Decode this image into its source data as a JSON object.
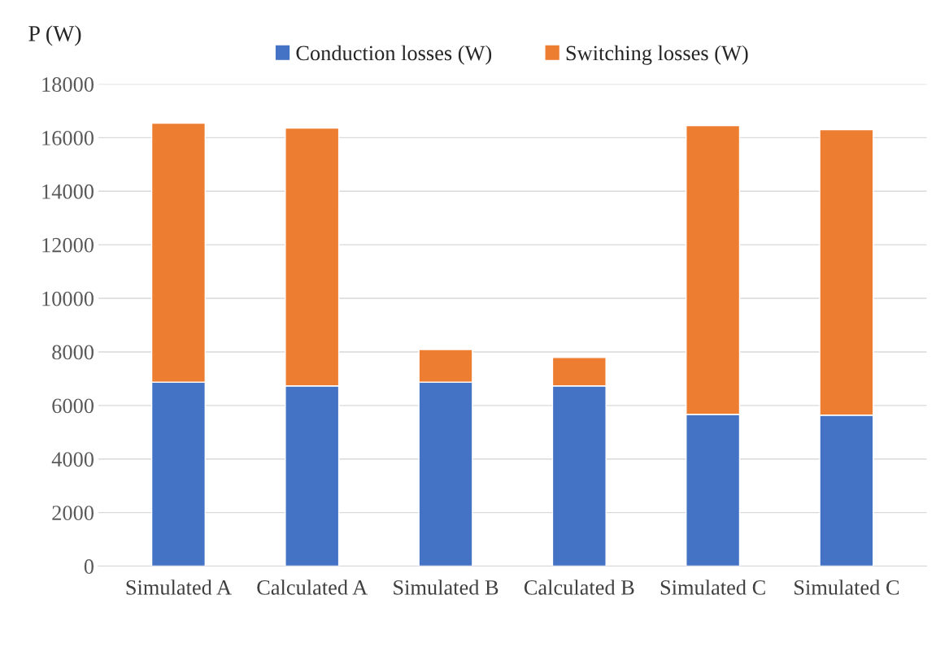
{
  "chart_data": {
    "type": "bar",
    "stacked": true,
    "ylabel": "P (W)",
    "categories": [
      "Simulated A",
      "Calculated A",
      "Simulated B",
      "Calculated B",
      "Simulated C",
      "Simulated C"
    ],
    "series": [
      {
        "name": "Conduction losses (W)",
        "color": "#4472c4",
        "values": [
          6870,
          6730,
          6870,
          6730,
          5670,
          5640
        ]
      },
      {
        "name": "Switching losses (W)",
        "color": "#ed7d31",
        "values": [
          9670,
          9630,
          1220,
          1060,
          10780,
          10660
        ]
      }
    ],
    "ylim": [
      0,
      18000
    ],
    "yticks": [
      0,
      2000,
      4000,
      6000,
      8000,
      10000,
      12000,
      14000,
      16000,
      18000
    ],
    "grid": "y",
    "legend": "top"
  }
}
